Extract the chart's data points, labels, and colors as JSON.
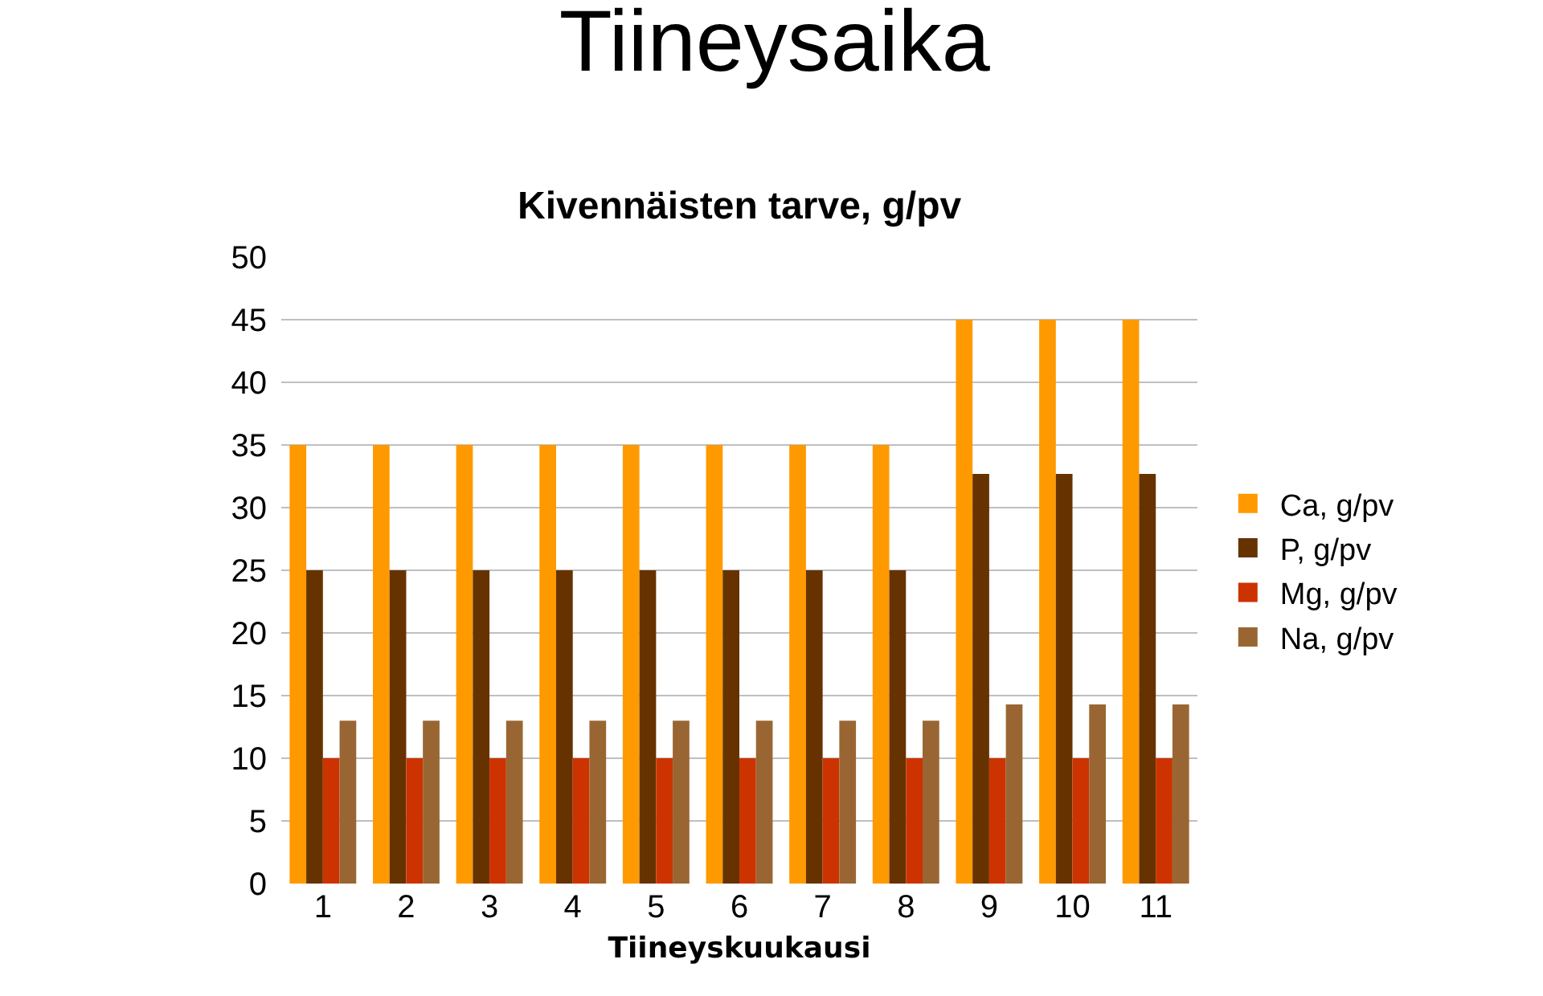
{
  "chart_data": {
    "type": "bar",
    "title": "Tiineysaika",
    "subtitle": "Kivennäisten tarve, g/pv",
    "xlabel": "Tiineyskuukausi",
    "categories": [
      "1",
      "2",
      "3",
      "4",
      "5",
      "6",
      "7",
      "8",
      "9",
      "10",
      "11"
    ],
    "series": [
      {
        "name": "Ca, g/pv",
        "color": "#ff9900",
        "values": [
          35,
          35,
          35,
          35,
          35,
          35,
          35,
          35,
          45,
          45,
          45
        ]
      },
      {
        "name": "P, g/pv",
        "color": "#663300",
        "values": [
          25,
          25,
          25,
          25,
          25,
          25,
          25,
          25,
          32.7,
          32.7,
          32.7
        ]
      },
      {
        "name": "Mg, g/pv",
        "color": "#cc3300",
        "values": [
          10,
          10,
          10,
          10,
          10,
          10,
          10,
          10,
          10,
          10,
          10
        ]
      },
      {
        "name": "Na, g/pv",
        "color": "#996633",
        "values": [
          13,
          13,
          13,
          13,
          13,
          13,
          13,
          13,
          14.3,
          14.3,
          14.3
        ]
      }
    ],
    "ylim": [
      0,
      50
    ],
    "yticks": [
      0,
      5,
      10,
      15,
      20,
      25,
      30,
      35,
      40,
      45,
      50
    ],
    "grid": "y",
    "legend": "right"
  }
}
